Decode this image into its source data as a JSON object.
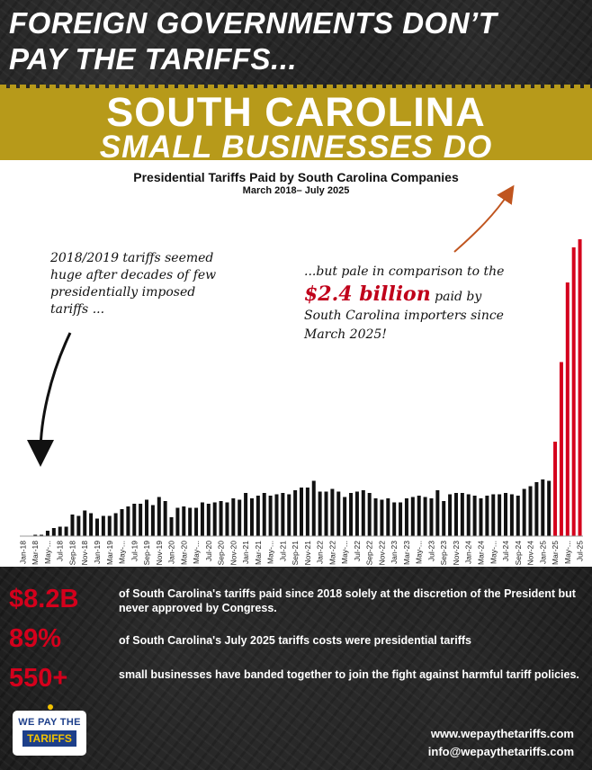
{
  "header": {
    "line1": "FOREIGN GOVERNMENTS DON’T",
    "line2": "PAY THE TARIFFS...",
    "state_title": "SOUTH CAROLINA",
    "state_subtitle": "SMALL BUSINESSES DO"
  },
  "annotations": {
    "left_l1": "2018/2019 tariffs seemed",
    "left_l2": "huge after decades of few",
    "left_l3": "presidentially imposed",
    "left_l4": "tariffs ...",
    "right_l1": "...but pale in comparison to the",
    "right_amount": "$2.4 billion",
    "right_l2_tail": " paid by",
    "right_l3": "South Carolina importers since",
    "right_l4": "March 2025!"
  },
  "colors": {
    "bar_black": "#111111",
    "bar_red": "#d4001c",
    "gold_band": "#b79a1a",
    "stat_red": "#d4001c"
  },
  "chart_data": {
    "type": "bar",
    "title": "Presidential Tariffs Paid by South Carolina Companies",
    "subtitle": "March 2018– July 2025",
    "x": [
      "Jan-18",
      "Feb-18",
      "Mar-18",
      "Apr-18",
      "May-18",
      "Jun-18",
      "Jul-18",
      "Aug-18",
      "Sep-18",
      "Oct-18",
      "Nov-18",
      "Dec-18",
      "Jan-19",
      "Feb-19",
      "Mar-19",
      "Apr-19",
      "May-19",
      "Jun-19",
      "Jul-19",
      "Aug-19",
      "Sep-19",
      "Oct-19",
      "Nov-19",
      "Dec-19",
      "Jan-20",
      "Feb-20",
      "Mar-20",
      "Apr-20",
      "May-20",
      "Jun-20",
      "Jul-20",
      "Aug-20",
      "Sep-20",
      "Oct-20",
      "Nov-20",
      "Dec-20",
      "Jan-21",
      "Feb-21",
      "Mar-21",
      "Apr-21",
      "May-21",
      "Jun-21",
      "Jul-21",
      "Aug-21",
      "Sep-21",
      "Oct-21",
      "Nov-21",
      "Dec-21",
      "Jan-22",
      "Feb-22",
      "Mar-22",
      "Apr-22",
      "May-22",
      "Jun-22",
      "Jul-22",
      "Aug-22",
      "Sep-22",
      "Oct-22",
      "Nov-22",
      "Dec-22",
      "Jan-23",
      "Feb-23",
      "Mar-23",
      "Apr-23",
      "May-23",
      "Jun-23",
      "Jul-23",
      "Aug-23",
      "Sep-23",
      "Oct-23",
      "Nov-23",
      "Dec-23",
      "Jan-24",
      "Feb-24",
      "Mar-24",
      "Apr-24",
      "May-24",
      "Jun-24",
      "Jul-24",
      "Aug-24",
      "Sep-24",
      "Oct-24",
      "Nov-24",
      "Dec-24",
      "Jan-25",
      "Feb-25",
      "Mar-25",
      "Apr-25",
      "May-25",
      "Jun-25",
      "Jul-25"
    ],
    "tick_labels": [
      "Jan-18",
      "Mar-18",
      "May-...",
      "Jul-18",
      "Sep-18",
      "Nov-18",
      "Jan-19",
      "Mar-19",
      "May-...",
      "Jul-19",
      "Sep-19",
      "Nov-19",
      "Jan-20",
      "Mar-20",
      "May-...",
      "Jul-20",
      "Sep-20",
      "Nov-20",
      "Jan-21",
      "Mar-21",
      "May-...",
      "Jul-21",
      "Sep-21",
      "Nov-21",
      "Jan-22",
      "Mar-22",
      "May-...",
      "Jul-22",
      "Sep-22",
      "Nov-22",
      "Jan-23",
      "Mar-23",
      "May-...",
      "Jul-23",
      "Sep-23",
      "Nov-23",
      "Jan-24",
      "Mar-24",
      "May-...",
      "Jul-24",
      "Sep-24",
      "Nov-24",
      "Jan-25",
      "Mar-25",
      "May-...",
      "Jul-25"
    ],
    "values": [
      0,
      0,
      1,
      1,
      4,
      6,
      7,
      7,
      16,
      15,
      19,
      17,
      13,
      15,
      15,
      17,
      20,
      22,
      24,
      24,
      27,
      23,
      29,
      26,
      14,
      21,
      22,
      21,
      21,
      25,
      24,
      25,
      26,
      25,
      28,
      27,
      32,
      28,
      30,
      32,
      30,
      31,
      32,
      31,
      34,
      36,
      36,
      41,
      33,
      33,
      35,
      33,
      29,
      32,
      33,
      34,
      32,
      28,
      27,
      28,
      25,
      25,
      28,
      29,
      30,
      29,
      28,
      34,
      26,
      31,
      32,
      32,
      31,
      30,
      28,
      30,
      31,
      31,
      32,
      31,
      30,
      35,
      37,
      40,
      42,
      41,
      70,
      129,
      188,
      214,
      220
    ],
    "highlight_from": "Mar-25",
    "ylim": [
      0,
      220
    ],
    "xlabel": "",
    "ylabel": "",
    "grid": false
  },
  "stats": [
    {
      "value": "$8.2B",
      "text": "of South Carolina's tariffs paid since 2018 solely at the discretion of the President but never approved by Congress."
    },
    {
      "value": "89%",
      "text": "of South Carolina's July 2025 tariffs costs were presidential tariffs"
    },
    {
      "value": "550+",
      "text": "small businesses have banded together to join the fight against harmful tariff policies."
    }
  ],
  "footer": {
    "logo_line1": "WE PAY THE",
    "logo_line2": "TARIFFS",
    "website": "www.wepaythetariffs.com",
    "email": "info@wepaythetariffs.com"
  }
}
